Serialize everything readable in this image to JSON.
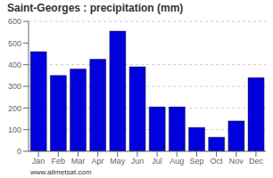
{
  "chart_data": {
    "type": "bar",
    "title": "Saint-Georges : precipitation (mm)",
    "categories": [
      "Jan",
      "Feb",
      "Mar",
      "Apr",
      "May",
      "Jun",
      "Jul",
      "Aug",
      "Sep",
      "Oct",
      "Nov",
      "Dec"
    ],
    "values": [
      460,
      350,
      380,
      425,
      555,
      390,
      205,
      205,
      110,
      65,
      140,
      340
    ],
    "color": "#0000dd",
    "ylim": [
      0,
      600
    ],
    "yticks": [
      0,
      100,
      200,
      300,
      400,
      500,
      600
    ],
    "grid": true,
    "annotations": [
      "www.allmetsat.com"
    ]
  }
}
